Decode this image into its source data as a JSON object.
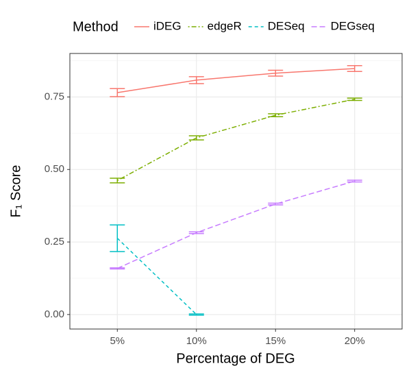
{
  "chart_data": {
    "type": "line",
    "xlabel": "Percentage of DEG",
    "ylabel": "F₁ Score",
    "legend_title": "Method",
    "legend": "top",
    "grid": true,
    "categories": [
      "5%",
      "10%",
      "15%",
      "20%"
    ],
    "ylim": [
      -0.05,
      0.9
    ],
    "yticks": [
      {
        "value": 0,
        "label": "0.00"
      },
      {
        "value": 0.25,
        "label": "0.25"
      },
      {
        "value": 0.5,
        "label": "0.50"
      },
      {
        "value": 0.75,
        "label": "0.75"
      }
    ],
    "series": [
      {
        "name": "iDEG",
        "color": "#F8766D",
        "dash": "solid",
        "values": [
          0.765,
          0.808,
          0.832,
          0.848
        ],
        "errors": [
          0.014,
          0.012,
          0.01,
          0.01
        ]
      },
      {
        "name": "edgeR",
        "color": "#7CAE00",
        "dash": "dotdash",
        "values": [
          0.462,
          0.609,
          0.687,
          0.742
        ],
        "errors": [
          0.008,
          0.007,
          0.005,
          0.004
        ]
      },
      {
        "name": "DESeq",
        "color": "#00BFC4",
        "dash": "dashed",
        "values": [
          0.263,
          0.0,
          null,
          null
        ],
        "errors": [
          0.046,
          0.002,
          null,
          null
        ]
      },
      {
        "name": "DEGseq",
        "color": "#C77CFF",
        "dash": "longdash",
        "values": [
          0.159,
          0.282,
          0.381,
          0.46
        ],
        "errors": [
          0.002,
          0.003,
          0.003,
          0.003
        ]
      }
    ]
  }
}
